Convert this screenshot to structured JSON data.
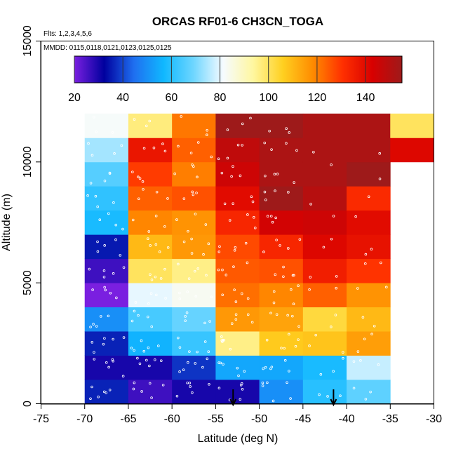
{
  "chart_data": {
    "type": "heatmap",
    "title": "ORCAS RF01-6 CH3CN_TOGA",
    "flights_note": "Flts: 1,2,3,4,5,6",
    "dates_note": "MMDD: 0115,0118,0121,0123,0125,0125",
    "xlabel": "Latitude (deg N)",
    "ylabel": "Altitude (m)",
    "xlim": [
      -75,
      -30
    ],
    "ylim": [
      0,
      15000
    ],
    "x_ticks": [
      -75,
      -70,
      -65,
      -60,
      -55,
      -50,
      -45,
      -40,
      -35,
      -30
    ],
    "x_tick_labels": [
      "-75",
      "-70",
      "-65",
      "-60",
      "-55",
      "-50",
      "-45",
      "-40",
      "-35",
      "-30"
    ],
    "y_ticks": [
      0,
      5000,
      10000,
      15000
    ],
    "y_tick_labels": [
      "0",
      "5000",
      "10000",
      "15000"
    ],
    "colorbar": {
      "min": 20,
      "max": 155,
      "ticks": [
        20,
        40,
        60,
        80,
        100,
        120,
        140
      ],
      "tick_labels": [
        "20",
        "40",
        "60",
        "80",
        "100",
        "120",
        "140"
      ],
      "colors": [
        "#7a1fe0",
        "#00009e",
        "#1f6ff0",
        "#10b8ff",
        "#6ed6ff",
        "#f6fbff",
        "#fff7a0",
        "#ffd020",
        "#ff8c00",
        "#ff3000",
        "#d80000",
        "#9e1a1a"
      ]
    },
    "lat_bins": [
      -70,
      -65,
      -60,
      -55,
      -50,
      -45,
      -40,
      -35,
      -30
    ],
    "alt_bins": [
      0,
      1000,
      2000,
      3000,
      4000,
      5000,
      6000,
      7000,
      8000,
      9000,
      10000,
      11000,
      12000
    ],
    "cells": [
      [
        36,
        30,
        36,
        50,
        20,
        26,
        35,
        58,
        61,
        66,
        74,
        82
      ],
      [
        26,
        30,
        56,
        64,
        80,
        100,
        110,
        119,
        124,
        129,
        137,
        97
      ],
      [
        30,
        38,
        62,
        68,
        83,
        96,
        116,
        117,
        126,
        120,
        124,
        121
      ],
      [
        30,
        54,
        96,
        116,
        122,
        125,
        127,
        133,
        140,
        145,
        148,
        155
      ],
      [
        50,
        54,
        107,
        114,
        119,
        126,
        133,
        144,
        155,
        152,
        152,
        155
      ],
      [
        60,
        58,
        108,
        103,
        124,
        135,
        141,
        145,
        150,
        152,
        152,
        152
      ],
      [
        67,
        77,
        115,
        110,
        117,
        130,
        138,
        140,
        132,
        157,
        152,
        152
      ],
      [
        null,
        null,
        null,
        null,
        null,
        null,
        null,
        null,
        null,
        null,
        141,
        100
      ]
    ],
    "arrows_lat": [
      -53,
      -41.5
    ]
  }
}
